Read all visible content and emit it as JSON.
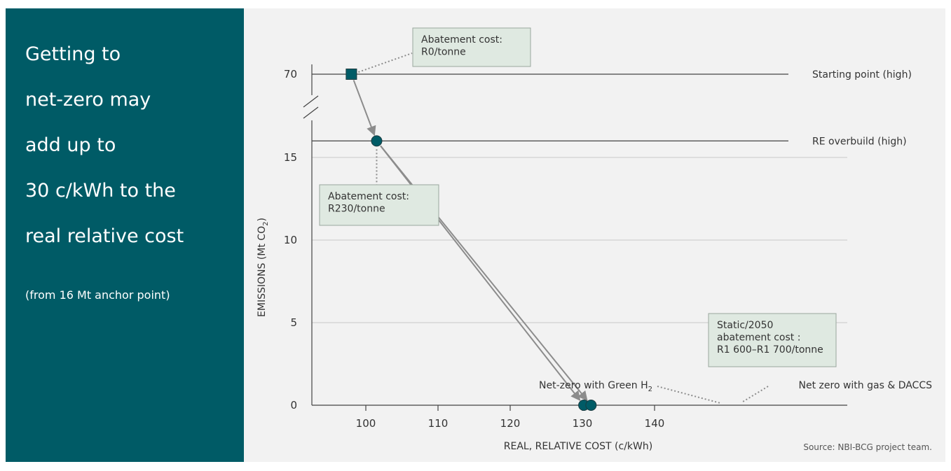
{
  "headline": {
    "lines": [
      "Getting to",
      "net-zero may",
      "add up to",
      "30 c/kWh to the",
      "real relative cost"
    ],
    "subnote": "(from 16 Mt anchor point)"
  },
  "source": "Source: NBI-BCG project team.",
  "colors": {
    "panel": "#005b66",
    "marker": "#005b66",
    "arrow": "#8c8c8c",
    "callout_fill": "#dfe9e1",
    "chart_background": "#f2f2f2"
  },
  "chart_data": {
    "type": "scatter",
    "xlabel": "REAL, RELATIVE COST (c/kWh)",
    "ylabel": "EMISSIONS (Mt CO",
    "ylabel_subscript": "2",
    "ylabel_suffix": ")",
    "xlim": [
      95,
      140
    ],
    "ylim": [
      0,
      70
    ],
    "axis_break": "between 16 and 70 (y axis)",
    "x_ticks": [
      100,
      110,
      120,
      130,
      140
    ],
    "y_ticks": [
      0,
      5,
      10,
      15,
      70
    ],
    "grid": "horizontal",
    "reference_lines": [
      {
        "label": "Starting point (high)",
        "y": 70
      },
      {
        "label": "RE overbuild (high)",
        "y": 16
      }
    ],
    "points": [
      {
        "id": "starting-point",
        "marker": "square",
        "x": 98,
        "y": 70
      },
      {
        "id": "re-overbuild",
        "marker": "circle",
        "x": 101.5,
        "y": 16
      },
      {
        "id": "net-zero-green-h2",
        "marker": "circle",
        "x": 130.2,
        "y": 0
      },
      {
        "id": "net-zero-gas-daccs",
        "marker": "circle",
        "x": 131.2,
        "y": 0
      }
    ],
    "arrows": [
      {
        "from": "starting-point",
        "to": "re-overbuild"
      },
      {
        "from": "re-overbuild",
        "to": "net-zero-green-h2"
      },
      {
        "from": "re-overbuild",
        "to": "net-zero-gas-daccs"
      }
    ],
    "callouts": [
      {
        "lines": [
          "Abatement cost:",
          "R0/tonne"
        ]
      },
      {
        "lines": [
          "Abatement cost:",
          "R230/tonne"
        ]
      },
      {
        "lines": [
          "Static/2050",
          "abatement cost :",
          "R1 600–R1 700/tonne"
        ]
      }
    ],
    "point_labels": [
      {
        "text": "Net-zero with Green H",
        "subscript": "2"
      },
      {
        "text": "Net zero with gas & DACCS"
      }
    ]
  }
}
